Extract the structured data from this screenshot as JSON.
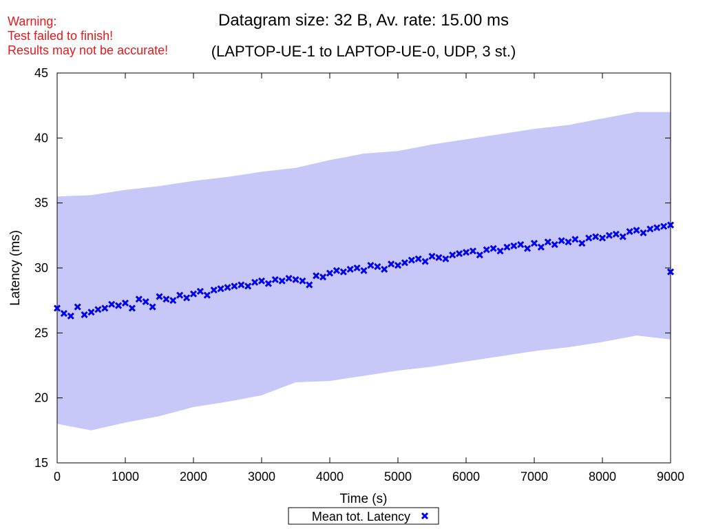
{
  "warning": {
    "line1": "Warning:",
    "line2": "Test failed to finish!",
    "line3": "Results may not be accurate!"
  },
  "chart_data": {
    "type": "scatter",
    "title": "Datagram size: 32 B, Av. rate: 15.00 ms",
    "subtitle": "(LAPTOP-UE-1 to LAPTOP-UE-0, UDP, 3 st.)",
    "xlabel": "Time (s)",
    "ylabel": "Latency (ms)",
    "xlim": [
      0,
      9000
    ],
    "ylim": [
      15,
      45
    ],
    "xticks": [
      0,
      1000,
      2000,
      3000,
      4000,
      5000,
      6000,
      7000,
      8000,
      9000
    ],
    "yticks": [
      15,
      20,
      25,
      30,
      35,
      40,
      45
    ],
    "legend": {
      "position": "bottom-center",
      "label": "Mean tot. Latency"
    },
    "colors": {
      "marker": "#0000ee",
      "band": "#c8c8f8"
    },
    "band": {
      "x": [
        0,
        500,
        1000,
        1500,
        2000,
        2500,
        3000,
        3500,
        4000,
        4500,
        5000,
        5500,
        6000,
        6500,
        7000,
        7500,
        8000,
        8500,
        9000
      ],
      "upper": [
        35.5,
        35.6,
        36.0,
        36.3,
        36.7,
        37.0,
        37.4,
        37.7,
        38.3,
        38.8,
        39.0,
        39.5,
        39.9,
        40.3,
        40.7,
        41.0,
        41.5,
        42.0,
        42.0
      ],
      "lower": [
        18.0,
        17.5,
        18.1,
        18.6,
        19.3,
        19.7,
        20.2,
        21.2,
        21.3,
        21.7,
        22.1,
        22.4,
        22.8,
        23.2,
        23.6,
        23.9,
        24.3,
        24.8,
        24.5
      ]
    },
    "series": [
      {
        "name": "Mean tot. Latency",
        "x": [
          0,
          100,
          200,
          300,
          400,
          500,
          600,
          700,
          800,
          900,
          1000,
          1100,
          1200,
          1300,
          1400,
          1500,
          1600,
          1700,
          1800,
          1900,
          2000,
          2100,
          2200,
          2300,
          2400,
          2500,
          2600,
          2700,
          2800,
          2900,
          3000,
          3100,
          3200,
          3300,
          3400,
          3500,
          3600,
          3700,
          3800,
          3900,
          4000,
          4100,
          4200,
          4300,
          4400,
          4500,
          4600,
          4700,
          4800,
          4900,
          5000,
          5100,
          5200,
          5300,
          5400,
          5500,
          5600,
          5700,
          5800,
          5900,
          6000,
          6100,
          6200,
          6300,
          6400,
          6500,
          6600,
          6700,
          6800,
          6900,
          7000,
          7100,
          7200,
          7300,
          7400,
          7500,
          7600,
          7700,
          7800,
          7900,
          8000,
          8100,
          8200,
          8300,
          8400,
          8500,
          8600,
          8700,
          8800,
          8900,
          9000
        ],
        "y": [
          26.9,
          26.5,
          26.3,
          27.0,
          26.4,
          26.6,
          26.8,
          26.9,
          27.2,
          27.1,
          27.3,
          26.9,
          27.6,
          27.4,
          27.0,
          27.8,
          27.6,
          27.5,
          27.9,
          27.7,
          28.0,
          28.2,
          27.9,
          28.3,
          28.4,
          28.5,
          28.6,
          28.7,
          28.6,
          28.9,
          29.0,
          28.8,
          29.1,
          29.0,
          29.2,
          29.1,
          29.0,
          28.7,
          29.4,
          29.3,
          29.6,
          29.8,
          29.7,
          29.9,
          30.0,
          29.8,
          30.2,
          30.1,
          29.9,
          30.3,
          30.2,
          30.4,
          30.6,
          30.7,
          30.5,
          30.9,
          30.8,
          30.7,
          31.0,
          31.1,
          31.2,
          31.3,
          31.0,
          31.4,
          31.5,
          31.3,
          31.6,
          31.7,
          31.8,
          31.5,
          31.9,
          31.6,
          32.0,
          31.8,
          32.1,
          32.0,
          32.2,
          31.9,
          32.3,
          32.4,
          32.3,
          32.5,
          32.6,
          32.4,
          32.8,
          32.9,
          32.7,
          33.0,
          33.1,
          33.2,
          33.3
        ]
      },
      {
        "name": "",
        "x": [
          9000
        ],
        "y": [
          29.7
        ]
      }
    ]
  }
}
